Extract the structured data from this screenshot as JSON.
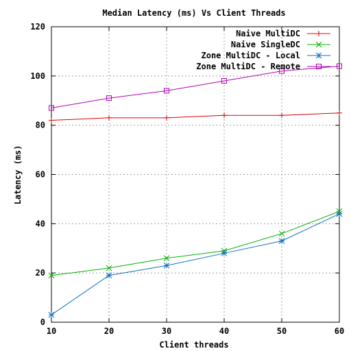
{
  "chart_data": {
    "type": "line",
    "title": "Median Latency (ms) Vs Client Threads",
    "xlabel": "Client threads",
    "ylabel": "Latency (ms)",
    "xlim": [
      10,
      60
    ],
    "ylim": [
      0,
      120
    ],
    "x_ticks": [
      10,
      20,
      30,
      40,
      50,
      60
    ],
    "y_ticks": [
      0,
      20,
      40,
      60,
      80,
      100,
      120
    ],
    "grid": true,
    "legend_position": "top-right",
    "x": [
      10,
      20,
      30,
      40,
      50,
      60
    ],
    "series": [
      {
        "name": "Naive MultiDC",
        "color": "#e00000",
        "marker": "plus",
        "values": [
          82,
          83,
          83,
          84,
          84,
          85
        ]
      },
      {
        "name": "Naive SingleDC",
        "color": "#00b000",
        "marker": "cross",
        "values": [
          19,
          22,
          26,
          29,
          36,
          45
        ]
      },
      {
        "name": "Zone MultiDC - Local",
        "color": "#1070c0",
        "marker": "star",
        "values": [
          3,
          19,
          23,
          28,
          33,
          44
        ]
      },
      {
        "name": "Zone MultiDC - Remote",
        "color": "#b000b0",
        "marker": "square",
        "values": [
          87,
          91,
          94,
          98,
          102,
          104
        ]
      }
    ]
  }
}
